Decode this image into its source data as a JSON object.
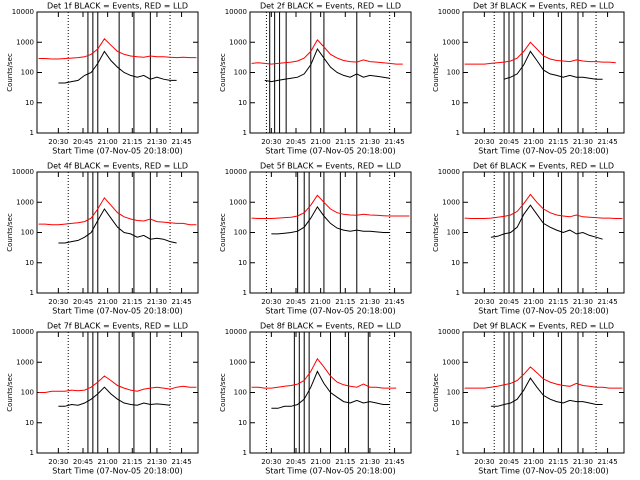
{
  "chart_data": [
    {
      "type": "line",
      "title": "Det 1f BLACK = Events, RED = LLD",
      "xlabel": "Start Time (07-Nov-05 20:18:00)",
      "ylabel": "Counts/sec",
      "x": [
        "20:18",
        "20:22",
        "20:26",
        "20:30",
        "20:34",
        "20:38",
        "20:42",
        "20:46",
        "20:50",
        "20:54",
        "20:58",
        "21:02",
        "21:06",
        "21:10",
        "21:14",
        "21:18",
        "21:22",
        "21:26",
        "21:30",
        "21:34",
        "21:38",
        "21:42",
        "21:46",
        "21:50",
        "21:54"
      ],
      "series": [
        {
          "color": "#000000",
          "values": [
            null,
            null,
            null,
            45,
            45,
            50,
            55,
            80,
            100,
            200,
            500,
            250,
            150,
            100,
            80,
            70,
            80,
            60,
            70,
            60,
            55,
            55,
            null,
            null,
            null
          ]
        },
        {
          "color": "#ff0000",
          "values": [
            290,
            290,
            280,
            280,
            290,
            300,
            310,
            330,
            400,
            600,
            1300,
            800,
            500,
            400,
            350,
            330,
            320,
            350,
            330,
            330,
            320,
            310,
            320,
            310,
            310
          ]
        }
      ],
      "xlim": [
        "20:17",
        "21:55"
      ],
      "xticks": [
        "20:30",
        "20:45",
        "21:00",
        "21:15",
        "21:30",
        "21:45"
      ],
      "ylim": [
        1,
        10000
      ],
      "yticks": [
        1,
        10,
        100,
        1000,
        10000
      ],
      "log_y": true,
      "dotted_lines": [
        "20:36",
        "21:38"
      ],
      "solid_lines": [
        "20:48",
        "20:51",
        "20:54",
        "21:07",
        "21:16",
        "21:26"
      ]
    },
    {
      "type": "line",
      "title": "Det 2f BLACK = Events, RED = LLD",
      "xlabel": "Start Time (07-Nov-05 20:18:00)",
      "ylabel": "Counts/sec",
      "x": [
        "20:18",
        "20:22",
        "20:26",
        "20:30",
        "20:34",
        "20:38",
        "20:42",
        "20:46",
        "20:50",
        "20:54",
        "20:58",
        "21:02",
        "21:06",
        "21:10",
        "21:14",
        "21:18",
        "21:22",
        "21:26",
        "21:30",
        "21:34",
        "21:38",
        "21:42",
        "21:46",
        "21:50",
        "21:54"
      ],
      "series": [
        {
          "color": "#000000",
          "values": [
            null,
            null,
            55,
            50,
            55,
            60,
            65,
            70,
            90,
            180,
            600,
            300,
            150,
            100,
            80,
            70,
            90,
            70,
            80,
            75,
            70,
            65,
            null,
            null,
            null
          ]
        },
        {
          "color": "#ff0000",
          "values": [
            200,
            210,
            200,
            190,
            200,
            210,
            220,
            240,
            300,
            500,
            1200,
            700,
            400,
            300,
            250,
            230,
            220,
            260,
            230,
            220,
            210,
            200,
            190,
            190,
            null
          ]
        }
      ],
      "xlim": [
        "20:17",
        "21:55"
      ],
      "xticks": [
        "20:30",
        "20:45",
        "21:00",
        "21:15",
        "21:30",
        "21:45"
      ],
      "ylim": [
        1,
        10000
      ],
      "yticks": [
        1,
        10,
        100,
        1000,
        10000
      ],
      "log_y": true,
      "dotted_lines": [
        "20:27",
        "21:42"
      ],
      "solid_lines": [
        "20:29",
        "20:32",
        "20:35",
        "20:39",
        "20:54",
        "21:02",
        "21:22"
      ]
    },
    {
      "type": "line",
      "title": "Det 3f BLACK = Events, RED = LLD",
      "xlabel": "Start Time (07-Nov-05 20:18:00)",
      "ylabel": "Counts/sec",
      "x": [
        "20:18",
        "20:22",
        "20:26",
        "20:30",
        "20:34",
        "20:38",
        "20:42",
        "20:46",
        "20:50",
        "20:54",
        "20:58",
        "21:02",
        "21:06",
        "21:10",
        "21:14",
        "21:18",
        "21:22",
        "21:26",
        "21:30",
        "21:34",
        "21:38",
        "21:42",
        "21:46",
        "21:50",
        "21:54"
      ],
      "series": [
        {
          "color": "#000000",
          "values": [
            null,
            null,
            null,
            null,
            null,
            null,
            60,
            70,
            90,
            180,
            500,
            250,
            120,
            90,
            80,
            70,
            80,
            70,
            70,
            65,
            60,
            60,
            null,
            null,
            null
          ]
        },
        {
          "color": "#ff0000",
          "values": [
            190,
            190,
            190,
            190,
            200,
            210,
            220,
            240,
            300,
            500,
            1000,
            600,
            350,
            280,
            250,
            240,
            230,
            260,
            240,
            230,
            230,
            220,
            220,
            210,
            null
          ]
        }
      ],
      "xlim": [
        "20:17",
        "21:55"
      ],
      "xticks": [
        "20:30",
        "20:45",
        "21:00",
        "21:15",
        "21:30",
        "21:45"
      ],
      "ylim": [
        1,
        10000
      ],
      "yticks": [
        1,
        10,
        100,
        1000,
        10000
      ],
      "log_y": true,
      "dotted_lines": [
        "20:36",
        "21:38"
      ],
      "solid_lines": [
        "20:42",
        "20:45",
        "20:48",
        "20:53",
        "21:06",
        "21:17",
        "21:27"
      ]
    },
    {
      "type": "line",
      "title": "Det 4f BLACK = Events, RED = LLD",
      "xlabel": "Start Time (07-Nov-05 20:18:00)",
      "ylabel": "Counts/sec",
      "x": [
        "20:18",
        "20:22",
        "20:26",
        "20:30",
        "20:34",
        "20:38",
        "20:42",
        "20:46",
        "20:50",
        "20:54",
        "20:58",
        "21:02",
        "21:06",
        "21:10",
        "21:14",
        "21:18",
        "21:22",
        "21:26",
        "21:30",
        "21:34",
        "21:38",
        "21:42",
        "21:46",
        "21:50",
        "21:54"
      ],
      "series": [
        {
          "color": "#000000",
          "values": [
            null,
            null,
            null,
            45,
            45,
            50,
            55,
            70,
            100,
            250,
            600,
            300,
            150,
            100,
            90,
            70,
            80,
            60,
            65,
            60,
            50,
            45,
            null,
            null,
            null
          ]
        },
        {
          "color": "#ff0000",
          "values": [
            190,
            190,
            180,
            180,
            190,
            200,
            210,
            230,
            300,
            600,
            1400,
            800,
            450,
            330,
            280,
            250,
            240,
            280,
            230,
            220,
            210,
            200,
            200,
            180,
            180
          ]
        }
      ],
      "xlim": [
        "20:17",
        "21:55"
      ],
      "xticks": [
        "20:30",
        "20:45",
        "21:00",
        "21:15",
        "21:30",
        "21:45"
      ],
      "ylim": [
        1,
        10000
      ],
      "yticks": [
        1,
        10,
        100,
        1000,
        10000
      ],
      "log_y": true,
      "dotted_lines": [
        "20:36",
        "21:38"
      ],
      "solid_lines": [
        "20:48",
        "20:51",
        "20:54",
        "21:07",
        "21:16",
        "21:26"
      ]
    },
    {
      "type": "line",
      "title": "Det 5f BLACK = Events, RED = LLD",
      "xlabel": "Start Time (07-Nov-05 20:18:00)",
      "ylabel": "Counts/sec",
      "x": [
        "20:18",
        "20:22",
        "20:26",
        "20:30",
        "20:34",
        "20:38",
        "20:42",
        "20:46",
        "20:50",
        "20:54",
        "20:58",
        "21:02",
        "21:06",
        "21:10",
        "21:14",
        "21:18",
        "21:22",
        "21:26",
        "21:30",
        "21:34",
        "21:38",
        "21:42",
        "21:46",
        "21:50",
        "21:54"
      ],
      "series": [
        {
          "color": "#000000",
          "values": [
            null,
            null,
            null,
            90,
            90,
            95,
            100,
            110,
            150,
            300,
            700,
            350,
            200,
            140,
            120,
            110,
            120,
            110,
            110,
            105,
            100,
            100,
            null,
            null,
            null
          ]
        },
        {
          "color": "#ff0000",
          "values": [
            300,
            290,
            290,
            290,
            300,
            310,
            320,
            350,
            450,
            800,
            1700,
            1000,
            600,
            450,
            400,
            380,
            370,
            400,
            380,
            370,
            360,
            350,
            350,
            350,
            350
          ]
        }
      ],
      "xlim": [
        "20:17",
        "21:55"
      ],
      "xticks": [
        "20:30",
        "20:45",
        "21:00",
        "21:15",
        "21:30",
        "21:45"
      ],
      "ylim": [
        1,
        10000
      ],
      "yticks": [
        1,
        10,
        100,
        1000,
        10000
      ],
      "log_y": true,
      "dotted_lines": [
        "20:27",
        "21:42"
      ],
      "solid_lines": [
        "20:46",
        "20:50",
        "20:53",
        "21:02",
        "21:12",
        "21:22"
      ]
    },
    {
      "type": "line",
      "title": "Det 6f BLACK = Events, RED = LLD",
      "xlabel": "Start Time (07-Nov-05 20:18:00)",
      "ylabel": "Counts/sec",
      "x": [
        "20:18",
        "20:22",
        "20:26",
        "20:30",
        "20:34",
        "20:38",
        "20:42",
        "20:46",
        "20:50",
        "20:54",
        "20:58",
        "21:02",
        "21:06",
        "21:10",
        "21:14",
        "21:18",
        "21:22",
        "21:26",
        "21:30",
        "21:34",
        "21:38",
        "21:42",
        "21:46",
        "21:50",
        "21:54"
      ],
      "series": [
        {
          "color": "#000000",
          "values": [
            null,
            null,
            null,
            null,
            70,
            75,
            90,
            100,
            150,
            400,
            800,
            400,
            200,
            150,
            120,
            100,
            120,
            90,
            100,
            80,
            70,
            60,
            null,
            null,
            null
          ]
        },
        {
          "color": "#ff0000",
          "values": [
            300,
            290,
            290,
            290,
            300,
            320,
            340,
            380,
            500,
            900,
            1800,
            1000,
            600,
            450,
            380,
            350,
            330,
            380,
            330,
            320,
            310,
            300,
            300,
            290,
            290
          ]
        }
      ],
      "xlim": [
        "20:17",
        "21:55"
      ],
      "xticks": [
        "20:30",
        "20:45",
        "21:00",
        "21:15",
        "21:30",
        "21:45"
      ],
      "ylim": [
        1,
        10000
      ],
      "yticks": [
        1,
        10,
        100,
        1000,
        10000
      ],
      "log_y": true,
      "dotted_lines": [
        "20:36",
        "21:38"
      ],
      "solid_lines": [
        "20:42",
        "20:45",
        "20:48",
        "20:53",
        "21:06",
        "21:17",
        "21:27"
      ]
    },
    {
      "type": "line",
      "title": "Det 7f BLACK = Events, RED = LLD",
      "xlabel": "Start Time (07-Nov-05 20:18:00)",
      "ylabel": "Counts/sec",
      "x": [
        "20:18",
        "20:22",
        "20:26",
        "20:30",
        "20:34",
        "20:38",
        "20:42",
        "20:46",
        "20:50",
        "20:54",
        "20:58",
        "21:02",
        "21:06",
        "21:10",
        "21:14",
        "21:18",
        "21:22",
        "21:26",
        "21:30",
        "21:34",
        "21:38",
        "21:42",
        "21:46",
        "21:50",
        "21:54"
      ],
      "series": [
        {
          "color": "#000000",
          "values": [
            null,
            null,
            null,
            35,
            35,
            40,
            38,
            45,
            60,
            90,
            150,
            90,
            60,
            45,
            40,
            38,
            45,
            40,
            42,
            40,
            38,
            null,
            null,
            null,
            null
          ]
        },
        {
          "color": "#ff0000",
          "values": [
            100,
            100,
            110,
            110,
            110,
            120,
            115,
            120,
            150,
            220,
            350,
            250,
            170,
            140,
            120,
            110,
            130,
            140,
            150,
            140,
            130,
            150,
            160,
            150,
            150
          ]
        }
      ],
      "xlim": [
        "20:17",
        "21:55"
      ],
      "xticks": [
        "20:30",
        "20:45",
        "21:00",
        "21:15",
        "21:30",
        "21:45"
      ],
      "ylim": [
        1,
        10000
      ],
      "yticks": [
        1,
        10,
        100,
        1000,
        10000
      ],
      "log_y": true,
      "dotted_lines": [
        "20:36",
        "21:38"
      ],
      "solid_lines": [
        "20:48",
        "20:51",
        "20:54",
        "21:07",
        "21:16",
        "21:26"
      ]
    },
    {
      "type": "line",
      "title": "Det 8f BLACK = Events, RED = LLD",
      "xlabel": "Start Time (07-Nov-05 20:18:00)",
      "ylabel": "Counts/sec",
      "x": [
        "20:18",
        "20:22",
        "20:26",
        "20:30",
        "20:34",
        "20:38",
        "20:42",
        "20:46",
        "20:50",
        "20:54",
        "20:58",
        "21:02",
        "21:06",
        "21:10",
        "21:14",
        "21:18",
        "21:22",
        "21:26",
        "21:30",
        "21:34",
        "21:38",
        "21:42",
        "21:46",
        "21:50",
        "21:54"
      ],
      "series": [
        {
          "color": "#000000",
          "values": [
            null,
            null,
            null,
            30,
            30,
            35,
            35,
            40,
            60,
            150,
            500,
            200,
            100,
            70,
            50,
            45,
            55,
            45,
            50,
            45,
            40,
            40,
            null,
            null,
            null
          ]
        },
        {
          "color": "#ff0000",
          "values": [
            150,
            150,
            140,
            140,
            150,
            160,
            170,
            190,
            250,
            500,
            1300,
            700,
            350,
            220,
            180,
            160,
            150,
            190,
            150,
            150,
            140,
            140,
            140,
            null,
            null
          ]
        }
      ],
      "xlim": [
        "20:17",
        "21:55"
      ],
      "xticks": [
        "20:30",
        "20:45",
        "21:00",
        "21:15",
        "21:30",
        "21:45"
      ],
      "ylim": [
        1,
        10000
      ],
      "yticks": [
        1,
        10,
        100,
        1000,
        10000
      ],
      "log_y": true,
      "dotted_lines": [
        "20:27",
        "21:42"
      ],
      "solid_lines": [
        "20:44",
        "20:47",
        "20:50",
        "20:53",
        "21:06",
        "21:17",
        "21:29"
      ]
    },
    {
      "type": "line",
      "title": "Det 9f BLACK = Events, RED = LLD",
      "xlabel": "Start Time (07-Nov-05 20:18:00)",
      "ylabel": "Counts/sec",
      "x": [
        "20:18",
        "20:22",
        "20:26",
        "20:30",
        "20:34",
        "20:38",
        "20:42",
        "20:46",
        "20:50",
        "20:54",
        "20:58",
        "21:02",
        "21:06",
        "21:10",
        "21:14",
        "21:18",
        "21:22",
        "21:26",
        "21:30",
        "21:34",
        "21:38",
        "21:42",
        "21:46",
        "21:50",
        "21:54"
      ],
      "series": [
        {
          "color": "#000000",
          "values": [
            null,
            null,
            null,
            null,
            35,
            35,
            40,
            45,
            60,
            120,
            300,
            150,
            80,
            60,
            50,
            45,
            55,
            50,
            50,
            45,
            40,
            40,
            null,
            null,
            null
          ]
        },
        {
          "color": "#ff0000",
          "values": [
            140,
            140,
            140,
            140,
            150,
            160,
            180,
            200,
            250,
            400,
            700,
            450,
            280,
            220,
            190,
            170,
            160,
            200,
            170,
            160,
            150,
            150,
            140,
            140,
            140
          ]
        }
      ],
      "xlim": [
        "20:17",
        "21:55"
      ],
      "xticks": [
        "20:30",
        "20:45",
        "21:00",
        "21:15",
        "21:30",
        "21:45"
      ],
      "ylim": [
        1,
        10000
      ],
      "yticks": [
        1,
        10,
        100,
        1000,
        10000
      ],
      "log_y": true,
      "dotted_lines": [
        "20:36",
        "21:38"
      ],
      "solid_lines": [
        "20:42",
        "20:45",
        "20:48",
        "20:53",
        "21:06",
        "21:17",
        "21:27"
      ]
    }
  ]
}
